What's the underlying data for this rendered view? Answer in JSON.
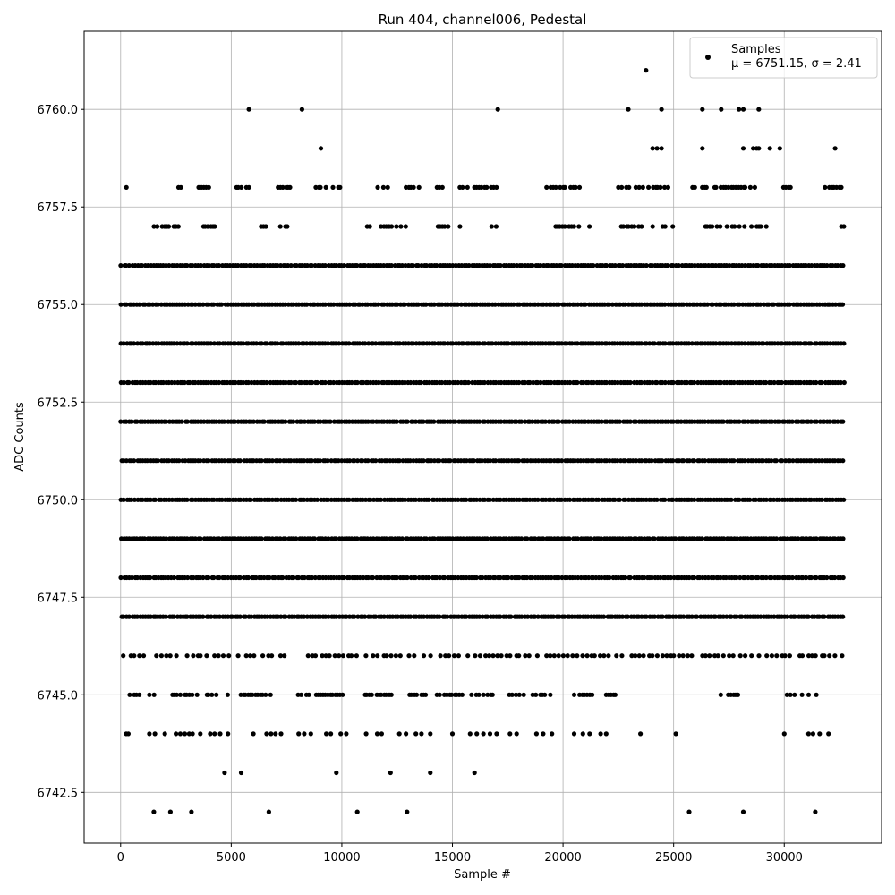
{
  "chart_data": {
    "type": "scatter",
    "title": "Run 404, channel006, Pedestal",
    "xlabel": "Sample #",
    "ylabel": "ADC Counts",
    "xlim": [
      -1650,
      34400
    ],
    "ylim": [
      6741.2,
      6762.0
    ],
    "xticks": [
      0,
      5000,
      10000,
      15000,
      20000,
      25000,
      30000
    ],
    "yticks": [
      6742.5,
      6745.0,
      6747.5,
      6750.0,
      6752.5,
      6755.0,
      6757.5,
      6760.0
    ],
    "xtick_labels": [
      "0",
      "5000",
      "10000",
      "15000",
      "20000",
      "25000",
      "30000"
    ],
    "ytick_labels": [
      "6742.5",
      "6745.0",
      "6747.5",
      "6750.0",
      "6752.5",
      "6755.0",
      "6757.5",
      "6760.0"
    ],
    "grid": true,
    "marker_color": "#000000",
    "legend": {
      "position": "upper right",
      "entries": [
        {
          "label": "Samples",
          "sublabel": "μ = 6751.15, σ = 2.41"
        }
      ]
    },
    "series": [
      {
        "x_range": [
          0,
          32767
        ],
        "dense_levels": [
          6746,
          6747,
          6748,
          6749,
          6750,
          6751,
          6752,
          6753,
          6754,
          6755,
          6756
        ],
        "sparse_points": [
          {
            "x": 1500,
            "y": 6742
          },
          {
            "x": 2250,
            "y": 6742
          },
          {
            "x": 3200,
            "y": 6742
          },
          {
            "x": 6700,
            "y": 6742
          },
          {
            "x": 10700,
            "y": 6742
          },
          {
            "x": 12950,
            "y": 6742
          },
          {
            "x": 25700,
            "y": 6742
          },
          {
            "x": 28150,
            "y": 6742
          },
          {
            "x": 31400,
            "y": 6742
          },
          {
            "x": 4700,
            "y": 6743
          },
          {
            "x": 5450,
            "y": 6743
          },
          {
            "x": 9750,
            "y": 6743
          },
          {
            "x": 12200,
            "y": 6743
          },
          {
            "x": 14000,
            "y": 6743
          },
          {
            "x": 16000,
            "y": 6743
          },
          {
            "x": 250,
            "y": 6744
          },
          {
            "x": 350,
            "y": 6744
          },
          {
            "x": 1300,
            "y": 6744
          },
          {
            "x": 1550,
            "y": 6744
          },
          {
            "x": 2000,
            "y": 6744
          },
          {
            "x": 2500,
            "y": 6744
          },
          {
            "x": 2700,
            "y": 6744
          },
          {
            "x": 2900,
            "y": 6744
          },
          {
            "x": 3100,
            "y": 6744
          },
          {
            "x": 3250,
            "y": 6744
          },
          {
            "x": 3600,
            "y": 6744
          },
          {
            "x": 4050,
            "y": 6744
          },
          {
            "x": 4250,
            "y": 6744
          },
          {
            "x": 4500,
            "y": 6744
          },
          {
            "x": 4850,
            "y": 6744
          },
          {
            "x": 6000,
            "y": 6744
          },
          {
            "x": 6600,
            "y": 6744
          },
          {
            "x": 6800,
            "y": 6744
          },
          {
            "x": 7000,
            "y": 6744
          },
          {
            "x": 7250,
            "y": 6744
          },
          {
            "x": 8050,
            "y": 6744
          },
          {
            "x": 8300,
            "y": 6744
          },
          {
            "x": 8600,
            "y": 6744
          },
          {
            "x": 9300,
            "y": 6744
          },
          {
            "x": 9500,
            "y": 6744
          },
          {
            "x": 9950,
            "y": 6744
          },
          {
            "x": 10200,
            "y": 6744
          },
          {
            "x": 11100,
            "y": 6744
          },
          {
            "x": 11600,
            "y": 6744
          },
          {
            "x": 11800,
            "y": 6744
          },
          {
            "x": 12600,
            "y": 6744
          },
          {
            "x": 12900,
            "y": 6744
          },
          {
            "x": 13350,
            "y": 6744
          },
          {
            "x": 13600,
            "y": 6744
          },
          {
            "x": 14000,
            "y": 6744
          },
          {
            "x": 15000,
            "y": 6744
          },
          {
            "x": 15800,
            "y": 6744
          },
          {
            "x": 16100,
            "y": 6744
          },
          {
            "x": 16400,
            "y": 6744
          },
          {
            "x": 16700,
            "y": 6744
          },
          {
            "x": 17000,
            "y": 6744
          },
          {
            "x": 17600,
            "y": 6744
          },
          {
            "x": 17900,
            "y": 6744
          },
          {
            "x": 18800,
            "y": 6744
          },
          {
            "x": 19100,
            "y": 6744
          },
          {
            "x": 19500,
            "y": 6744
          },
          {
            "x": 20500,
            "y": 6744
          },
          {
            "x": 20900,
            "y": 6744
          },
          {
            "x": 21200,
            "y": 6744
          },
          {
            "x": 21700,
            "y": 6744
          },
          {
            "x": 21950,
            "y": 6744
          },
          {
            "x": 23500,
            "y": 6744
          },
          {
            "x": 25100,
            "y": 6744
          },
          {
            "x": 30000,
            "y": 6744
          },
          {
            "x": 31100,
            "y": 6744
          },
          {
            "x": 31300,
            "y": 6744
          },
          {
            "x": 31600,
            "y": 6744
          },
          {
            "x": 32000,
            "y": 6744
          },
          {
            "x": 5800,
            "y": 6760
          },
          {
            "x": 8200,
            "y": 6760
          },
          {
            "x": 17050,
            "y": 6760
          },
          {
            "x": 22950,
            "y": 6760
          },
          {
            "x": 24450,
            "y": 6760
          },
          {
            "x": 26300,
            "y": 6760
          },
          {
            "x": 27150,
            "y": 6760
          },
          {
            "x": 27950,
            "y": 6760
          },
          {
            "x": 28150,
            "y": 6760
          },
          {
            "x": 28850,
            "y": 6760
          },
          {
            "x": 9050,
            "y": 6759
          },
          {
            "x": 24050,
            "y": 6759
          },
          {
            "x": 24250,
            "y": 6759
          },
          {
            "x": 24450,
            "y": 6759
          },
          {
            "x": 26300,
            "y": 6759
          },
          {
            "x": 28150,
            "y": 6759
          },
          {
            "x": 28600,
            "y": 6759
          },
          {
            "x": 28750,
            "y": 6759
          },
          {
            "x": 28850,
            "y": 6759
          },
          {
            "x": 29350,
            "y": 6759
          },
          {
            "x": 29800,
            "y": 6759
          },
          {
            "x": 32300,
            "y": 6759
          },
          {
            "x": 23750,
            "y": 6761
          }
        ],
        "sparse_level_ranges": [
          {
            "y": 6745,
            "segments": [
              [
                250,
                1500
              ],
              [
                2200,
                4900
              ],
              [
                5400,
                6900
              ],
              [
                7900,
                10100
              ],
              [
                11000,
                12300
              ],
              [
                12900,
                13900
              ],
              [
                14300,
                15400
              ],
              [
                15700,
                16900
              ],
              [
                17200,
                18200
              ],
              [
                18600,
                19800
              ],
              [
                20500,
                21300
              ],
              [
                21900,
                22400
              ],
              [
                27000,
                28000
              ],
              [
                30000,
                31500
              ]
            ]
          },
          {
            "y": 6757,
            "segments": [
              [
                200,
                400
              ],
              [
                1500,
                2700
              ],
              [
                3700,
                4300
              ],
              [
                6100,
                7600
              ],
              [
                11100,
                12900
              ],
              [
                14200,
                15300
              ],
              [
                16600,
                17000
              ],
              [
                19500,
                21200
              ],
              [
                22500,
                25000
              ],
              [
                26400,
                29200
              ],
              [
                32200,
                32767
              ]
            ]
          },
          {
            "y": 6758,
            "segments": [
              [
                250,
                350
              ],
              [
                2600,
                2800
              ],
              [
                3400,
                4000
              ],
              [
                5200,
                5800
              ],
              [
                7100,
                7800
              ],
              [
                8800,
                10000
              ],
              [
                11500,
                12200
              ],
              [
                12900,
                13500
              ],
              [
                14300,
                14600
              ],
              [
                15300,
                17100
              ],
              [
                19200,
                20800
              ],
              [
                22500,
                25000
              ],
              [
                25700,
                28700
              ],
              [
                29700,
                30300
              ],
              [
                31800,
                32767
              ]
            ]
          }
        ]
      }
    ]
  }
}
